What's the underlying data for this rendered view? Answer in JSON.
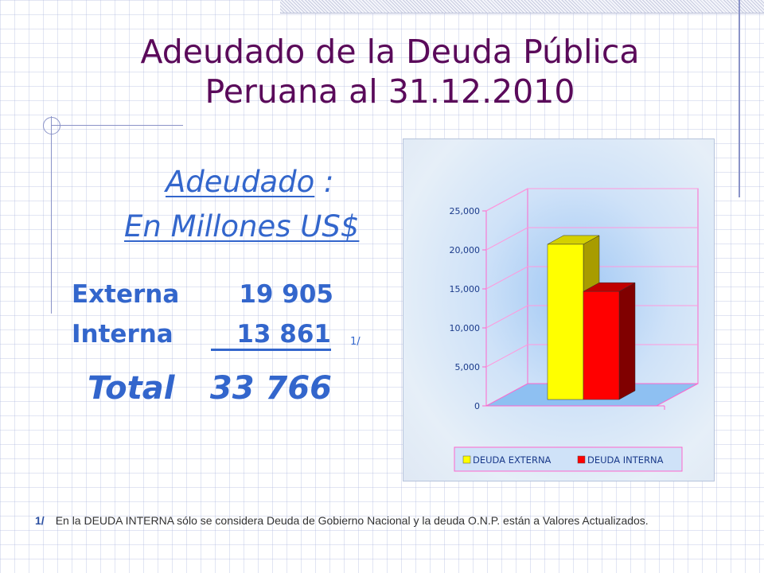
{
  "slide": {
    "title_line1": "Adeudado de la Deuda Pública",
    "title_line2": "Peruana al 31.12.2010",
    "subtitle_word": "Adeudado",
    "subtitle_colon": " :",
    "subtitle_line2": "En Millones US$"
  },
  "table": {
    "rows": [
      {
        "label": "Externa",
        "value": "19 905"
      },
      {
        "label": "Interna",
        "value": "13 861"
      }
    ],
    "note_marker": "1/",
    "total_label": "Total",
    "total_value": "33 766"
  },
  "footnote": {
    "marker": "1/",
    "text": "En la DEUDA INTERNA sólo se considera Deuda de Gobierno Nacional y la deuda O.N.P. están a Valores Actualizados."
  },
  "chart_data": {
    "type": "bar",
    "categories": [
      ""
    ],
    "series": [
      {
        "name": "DEUDA EXTERNA",
        "values": [
          19905
        ],
        "color": "#ffff00",
        "side": "#a89c00",
        "top": "#d4d000"
      },
      {
        "name": "DEUDA INTERNA",
        "values": [
          13861
        ],
        "color": "#ff0000",
        "side": "#800000",
        "top": "#c00000"
      }
    ],
    "yticks": [
      "0",
      "5,000",
      "10,000",
      "15,000",
      "20,000",
      "25,000"
    ],
    "ylim": [
      0,
      25000
    ],
    "grid": true,
    "legend": "bottom",
    "style": "3d"
  }
}
